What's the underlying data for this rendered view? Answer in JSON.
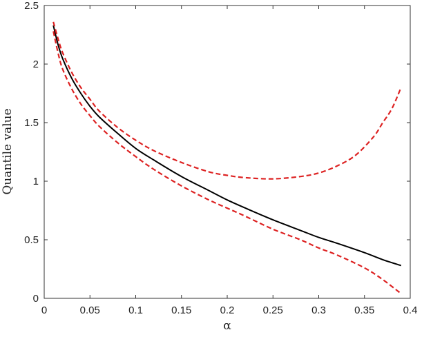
{
  "chart_data": {
    "type": "line",
    "title": "",
    "xlabel": "α",
    "ylabel": "Quantile value",
    "xlim": [
      0,
      0.4
    ],
    "ylim": [
      0,
      2.5
    ],
    "xticks": [
      0,
      0.05,
      0.1,
      0.15,
      0.2,
      0.25,
      0.3,
      0.35,
      0.4
    ],
    "xtick_labels": [
      "0",
      "0.05",
      "0.1",
      "0.15",
      "0.2",
      "0.25",
      "0.3",
      "0.35",
      "0.4"
    ],
    "yticks": [
      0,
      0.5,
      1,
      1.5,
      2,
      2.5
    ],
    "ytick_labels": [
      "0",
      "0.5",
      "1",
      "1.5",
      "2",
      "2.5"
    ],
    "grid": false,
    "legend": "none",
    "series": [
      {
        "style": "solid",
        "color": "#000000",
        "x": [
          0.01,
          0.015,
          0.02,
          0.03,
          0.04,
          0.05,
          0.06,
          0.08,
          0.1,
          0.12,
          0.15,
          0.18,
          0.2,
          0.22,
          0.25,
          0.28,
          0.3,
          0.32,
          0.35,
          0.37,
          0.39
        ],
        "y": [
          2.33,
          2.17,
          2.05,
          1.88,
          1.75,
          1.64,
          1.55,
          1.41,
          1.28,
          1.18,
          1.04,
          0.92,
          0.84,
          0.77,
          0.67,
          0.58,
          0.52,
          0.47,
          0.39,
          0.33,
          0.28
        ]
      },
      {
        "style": "dashed",
        "color": "#dd2222",
        "x": [
          0.01,
          0.015,
          0.02,
          0.03,
          0.04,
          0.05,
          0.06,
          0.08,
          0.1,
          0.12,
          0.15,
          0.18,
          0.2,
          0.22,
          0.25,
          0.28,
          0.3,
          0.32,
          0.34,
          0.36,
          0.37,
          0.38,
          0.39
        ],
        "y": [
          2.36,
          2.22,
          2.1,
          1.93,
          1.8,
          1.7,
          1.6,
          1.46,
          1.35,
          1.26,
          1.16,
          1.08,
          1.05,
          1.03,
          1.02,
          1.04,
          1.07,
          1.13,
          1.22,
          1.38,
          1.5,
          1.62,
          1.8
        ]
      },
      {
        "style": "dashed",
        "color": "#dd2222",
        "x": [
          0.01,
          0.015,
          0.02,
          0.03,
          0.04,
          0.05,
          0.06,
          0.08,
          0.1,
          0.12,
          0.15,
          0.18,
          0.2,
          0.22,
          0.25,
          0.28,
          0.3,
          0.32,
          0.35,
          0.37,
          0.39
        ],
        "y": [
          2.28,
          2.1,
          1.96,
          1.79,
          1.66,
          1.56,
          1.47,
          1.33,
          1.21,
          1.1,
          0.96,
          0.84,
          0.77,
          0.7,
          0.59,
          0.5,
          0.43,
          0.37,
          0.26,
          0.16,
          0.04
        ]
      }
    ]
  }
}
